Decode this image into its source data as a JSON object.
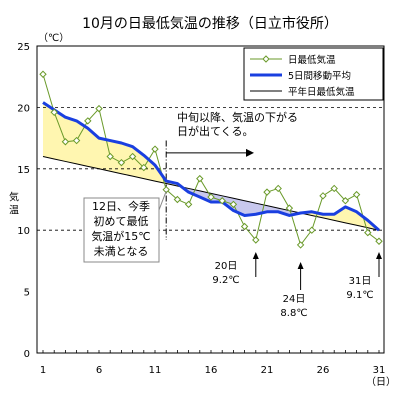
{
  "chart_data": {
    "type": "line",
    "title": "10月の日最低気温の推移（日立市役所）",
    "y_unit": "（℃）",
    "ylabel": "気温",
    "xlabel_unit": "（日）",
    "ylim": [
      0,
      25
    ],
    "xlim": [
      1,
      31
    ],
    "yticks": [
      0,
      5,
      10,
      15,
      20,
      25
    ],
    "xticks": [
      1,
      6,
      11,
      16,
      21,
      26,
      31
    ],
    "grid_y": [
      10,
      15,
      20
    ],
    "legend": "top-right",
    "days": [
      1,
      2,
      3,
      4,
      5,
      6,
      7,
      8,
      9,
      10,
      11,
      12,
      13,
      14,
      15,
      16,
      17,
      18,
      19,
      20,
      21,
      22,
      23,
      24,
      25,
      26,
      27,
      28,
      29,
      30,
      31
    ],
    "series": [
      {
        "name": "日最低気温",
        "color": "#6a9a2a",
        "values": [
          22.7,
          19.6,
          17.2,
          17.3,
          18.9,
          19.9,
          16.0,
          15.5,
          16.0,
          15.1,
          16.6,
          13.3,
          12.5,
          12.1,
          14.2,
          12.7,
          12.4,
          12.1,
          10.3,
          9.2,
          13.1,
          13.4,
          11.8,
          8.8,
          10.0,
          12.8,
          13.4,
          12.4,
          12.9,
          9.8,
          9.1
        ]
      },
      {
        "name": "5日間移動平均",
        "color": "#1a3fe0",
        "values": [
          20.4,
          19.8,
          19.2,
          18.9,
          18.3,
          17.5,
          17.3,
          17.1,
          16.8,
          16.1,
          15.3,
          14.0,
          13.8,
          13.1,
          12.7,
          12.3,
          12.3,
          11.6,
          11.2,
          11.3,
          11.5,
          11.5,
          11.2,
          11.4,
          11.5,
          11.3,
          11.3,
          11.9,
          11.5,
          10.8,
          10.0
        ]
      },
      {
        "name": "平年日最低気温",
        "color": "#000000",
        "values": [
          16.0,
          15.8,
          15.6,
          15.4,
          15.2,
          15.0,
          14.8,
          14.6,
          14.4,
          14.2,
          14.0,
          13.8,
          13.6,
          13.4,
          13.2,
          13.0,
          12.8,
          12.6,
          12.4,
          12.2,
          12.0,
          11.8,
          11.6,
          11.4,
          11.2,
          11.0,
          10.8,
          10.6,
          10.4,
          10.2,
          10.0
        ]
      }
    ],
    "fill_colors": {
      "warm": "#fff6b0",
      "cold": "#c8c8ee"
    },
    "divider_day": 12,
    "annotations": [
      {
        "id": "trend",
        "lines": [
          "中旬以降、気温の下がる",
          "日が出てくる。"
        ],
        "day": 12,
        "value": 17.6
      },
      {
        "id": "first",
        "lines": [
          "12日、今季",
          "初めて最低",
          "気温が15℃",
          "未満となる"
        ],
        "day": 12,
        "value": 13.5
      },
      {
        "id": "d20",
        "lines": [
          "20日",
          "9.2℃"
        ],
        "day": 20,
        "value": 9.2
      },
      {
        "id": "d24",
        "lines": [
          "24日",
          "8.8℃"
        ],
        "day": 24,
        "value": 8.8
      },
      {
        "id": "d31",
        "lines": [
          "31日",
          "9.1℃"
        ],
        "day": 31,
        "value": 9.1
      }
    ]
  }
}
